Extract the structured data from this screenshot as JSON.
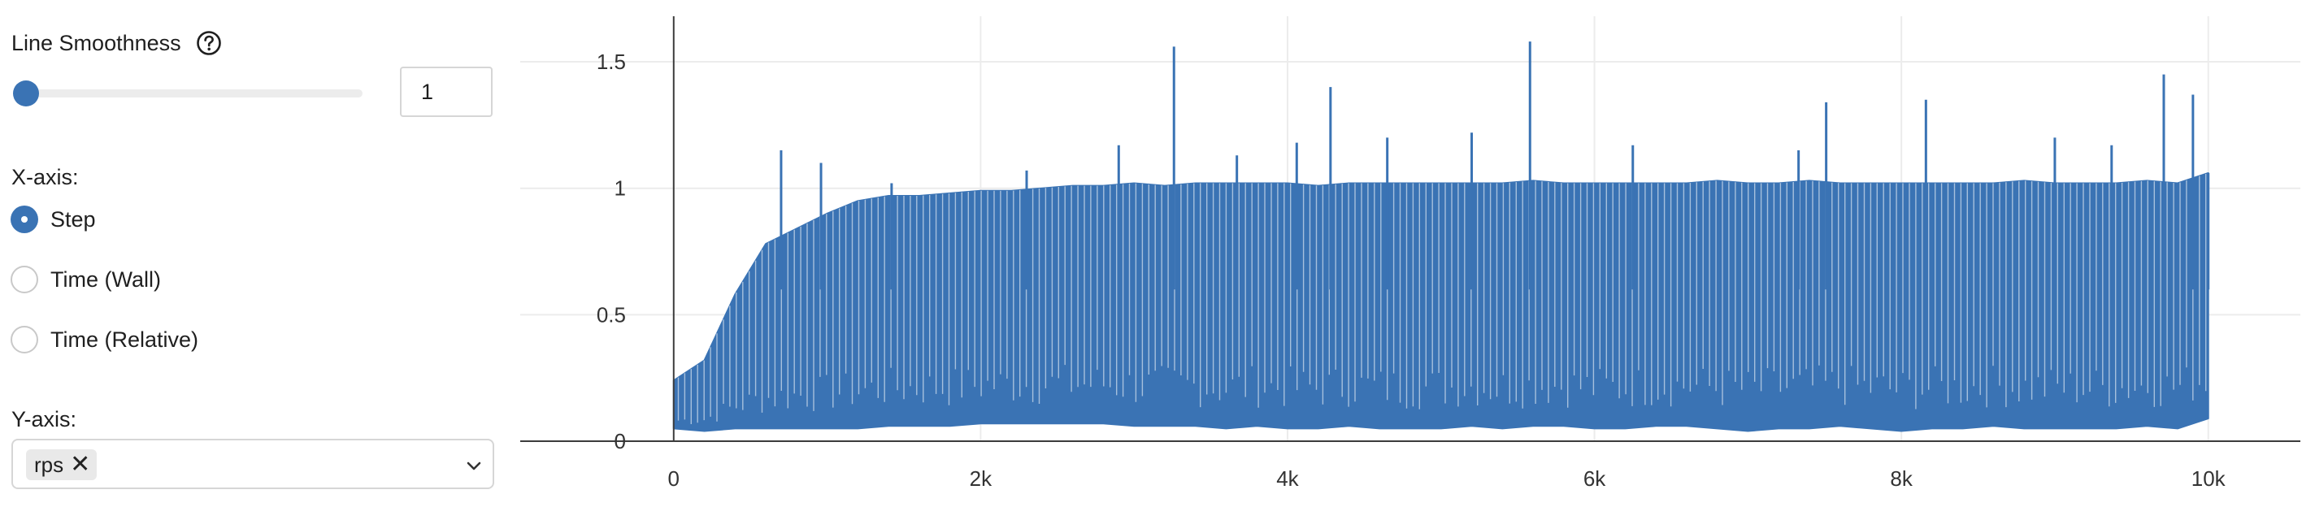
{
  "controls": {
    "smoothing_label": "Line Smoothness",
    "smoothing_value": "1",
    "smoothing_fraction": 0,
    "xaxis_label": "X-axis:",
    "xaxis_options": [
      "Step",
      "Time (Wall)",
      "Time (Relative)"
    ],
    "xaxis_selected": "Step",
    "yaxis_label": "Y-axis:",
    "yaxis_selected": [
      "rps"
    ],
    "remove_glyph": "✕"
  },
  "colors": {
    "accent": "#3a73b4",
    "series": "#3a73b4",
    "grid": "#ececec",
    "axis": "#3c3c3c"
  },
  "icons": {
    "help": "help-icon",
    "chevron": "chevron-down-icon",
    "remove": "close-icon"
  },
  "chart_data": {
    "type": "line",
    "title": "",
    "xlabel": "",
    "ylabel": "",
    "xlim": [
      -1000,
      10600
    ],
    "ylim": [
      0,
      1.68
    ],
    "xticks": [
      0,
      2000,
      4000,
      6000,
      8000,
      10000
    ],
    "xtick_labels": [
      "0",
      "2k",
      "4k",
      "6k",
      "8k",
      "10k"
    ],
    "yticks": [
      0,
      0.5,
      1,
      1.5
    ],
    "ytick_labels": [
      "0",
      "0.5",
      "1",
      "1.5"
    ],
    "grid": true,
    "series": [
      {
        "name": "rps",
        "x": [
          0,
          200,
          400,
          600,
          800,
          1000,
          1200,
          1400,
          1600,
          1800,
          2000,
          2200,
          2400,
          2600,
          2800,
          3000,
          3200,
          3400,
          3600,
          3800,
          4000,
          4200,
          4400,
          4600,
          4800,
          5000,
          5200,
          5400,
          5600,
          5800,
          6000,
          6200,
          6400,
          6600,
          6800,
          7000,
          7200,
          7400,
          7600,
          7800,
          8000,
          8200,
          8400,
          8600,
          8800,
          9000,
          9200,
          9400,
          9600,
          9800,
          10000
        ],
        "y_min": [
          0.05,
          0.04,
          0.05,
          0.05,
          0.05,
          0.05,
          0.05,
          0.06,
          0.06,
          0.06,
          0.07,
          0.07,
          0.07,
          0.07,
          0.07,
          0.06,
          0.06,
          0.06,
          0.05,
          0.06,
          0.05,
          0.05,
          0.06,
          0.05,
          0.05,
          0.05,
          0.06,
          0.05,
          0.06,
          0.06,
          0.05,
          0.05,
          0.06,
          0.06,
          0.05,
          0.04,
          0.05,
          0.05,
          0.06,
          0.05,
          0.04,
          0.05,
          0.05,
          0.06,
          0.05,
          0.05,
          0.05,
          0.05,
          0.06,
          0.05,
          0.09
        ],
        "y_max": [
          0.24,
          0.32,
          0.58,
          0.78,
          0.84,
          0.9,
          0.95,
          0.97,
          0.97,
          0.98,
          0.99,
          0.99,
          1.0,
          1.01,
          1.01,
          1.02,
          1.01,
          1.02,
          1.02,
          1.02,
          1.02,
          1.01,
          1.02,
          1.02,
          1.02,
          1.02,
          1.02,
          1.02,
          1.03,
          1.02,
          1.02,
          1.02,
          1.02,
          1.02,
          1.03,
          1.02,
          1.02,
          1.03,
          1.02,
          1.02,
          1.02,
          1.02,
          1.02,
          1.02,
          1.03,
          1.02,
          1.02,
          1.02,
          1.03,
          1.02,
          1.06
        ],
        "spikes": [
          [
            550,
            0.64
          ],
          [
            700,
            1.15
          ],
          [
            960,
            1.1
          ],
          [
            1420,
            1.02
          ],
          [
            2300,
            1.07
          ],
          [
            2900,
            1.17
          ],
          [
            3260,
            1.56
          ],
          [
            3670,
            1.13
          ],
          [
            4060,
            1.18
          ],
          [
            4280,
            1.4
          ],
          [
            4650,
            1.2
          ],
          [
            5200,
            1.22
          ],
          [
            5580,
            1.58
          ],
          [
            6250,
            1.17
          ],
          [
            7330,
            1.15
          ],
          [
            7510,
            1.34
          ],
          [
            8160,
            1.35
          ],
          [
            9000,
            1.2
          ],
          [
            9370,
            1.17
          ],
          [
            9710,
            1.45
          ],
          [
            9900,
            1.37
          ],
          [
            10000,
            1.06
          ]
        ]
      }
    ]
  }
}
